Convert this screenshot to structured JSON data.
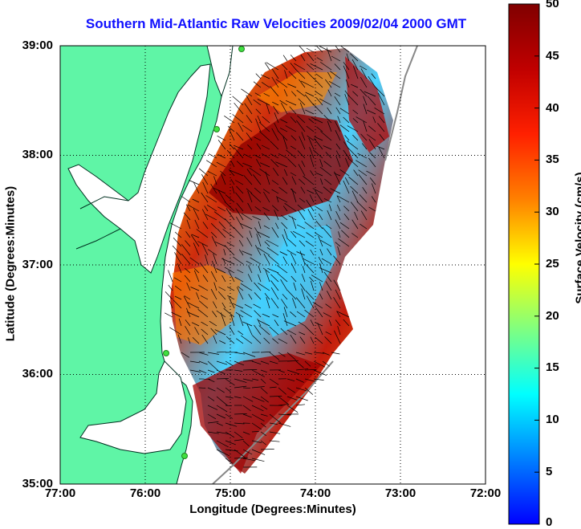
{
  "title": "Southern Mid-Atlantic Raw Velocities 2009/02/04 2000 GMT",
  "xlabel": "Longitude (Degrees:Minutes)",
  "ylabel": "Latitude (Degrees:Minutes)",
  "colorbar_label": "Surface Velocity (cm/s)",
  "x_ticks": [
    "77:00",
    "76:00",
    "75:00",
    "74:00",
    "73:00",
    "72:00"
  ],
  "y_ticks": [
    "39:00",
    "38:00",
    "37:00",
    "36:00",
    "35:00"
  ],
  "colorbar_ticks": [
    "50",
    "45",
    "40",
    "35",
    "30",
    "25",
    "20",
    "15",
    "10",
    "5",
    "0"
  ],
  "colorbar_range": [
    0,
    50
  ],
  "lon_range": [
    -77,
    -72
  ],
  "lat_range": [
    35,
    39
  ],
  "colors": {
    "land": "#5ff5a6",
    "title": "#1010ff",
    "station": "#40e040"
  }
}
